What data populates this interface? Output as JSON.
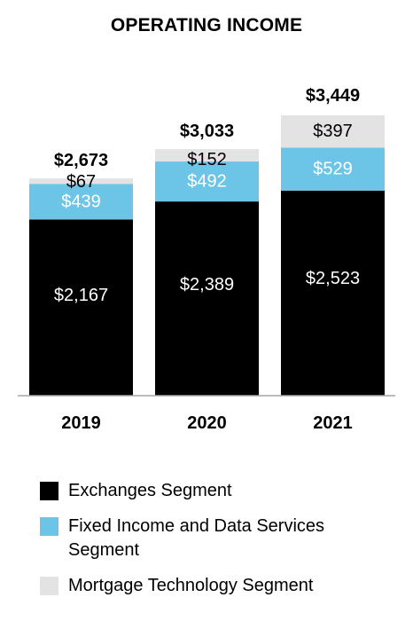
{
  "chart_data": {
    "type": "bar",
    "stacked": true,
    "title": "OPERATING INCOME",
    "categories": [
      "2019",
      "2020",
      "2021"
    ],
    "series": [
      {
        "name": "Exchanges Segment",
        "values": [
          2167,
          2389,
          2523
        ],
        "labels": [
          "$2,167",
          "$2,389",
          "$2,523"
        ],
        "color": "#000000",
        "label_color": "#ffffff"
      },
      {
        "name": "Fixed Income and Data Services Segment",
        "values": [
          439,
          492,
          529
        ],
        "labels": [
          "$439",
          "$492",
          "$529"
        ],
        "color": "#6cc5e6",
        "label_color": "#ffffff"
      },
      {
        "name": "Mortgage Technology Segment",
        "values": [
          67,
          152,
          397
        ],
        "labels": [
          "$67",
          "$152",
          "$397"
        ],
        "color": "#e3e3e3",
        "label_color": "#000000"
      }
    ],
    "totals": [
      2673,
      3033,
      3449
    ],
    "total_labels": [
      "$2,673",
      "$3,033",
      "$3,449"
    ],
    "ylim": [
      0,
      3449
    ],
    "grid": false,
    "legend_position": "bottom"
  },
  "legend": [
    {
      "label": "Exchanges Segment",
      "color": "#000000"
    },
    {
      "label": "Fixed Income and Data Services Segment",
      "color": "#6cc5e6"
    },
    {
      "label": "Mortgage Technology Segment",
      "color": "#e3e3e3"
    }
  ]
}
